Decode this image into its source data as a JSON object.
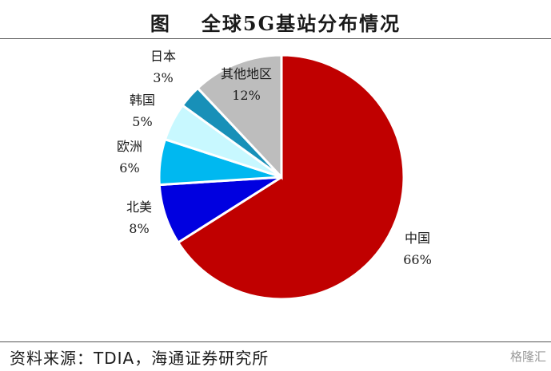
{
  "title": {
    "figure": "图",
    "text": "全球5G基站分布情况"
  },
  "source": "资料来源：TDIA，海通证券研究所",
  "watermark": "格隆汇",
  "chart_data": {
    "type": "pie",
    "categories": [
      "中国",
      "北美",
      "欧洲",
      "韩国",
      "日本",
      "其他地区"
    ],
    "values": [
      66,
      8,
      6,
      5,
      3,
      12
    ],
    "value_labels": [
      "66%",
      "8%",
      "6%",
      "5%",
      "3%",
      "12%"
    ],
    "colors": [
      "#c00000",
      "#0000e0",
      "#00b8f0",
      "#c8f8ff",
      "#1890b8",
      "#bdbdbd"
    ],
    "start": "12 o'clock",
    "direction": "clockwise",
    "legend": "none"
  }
}
